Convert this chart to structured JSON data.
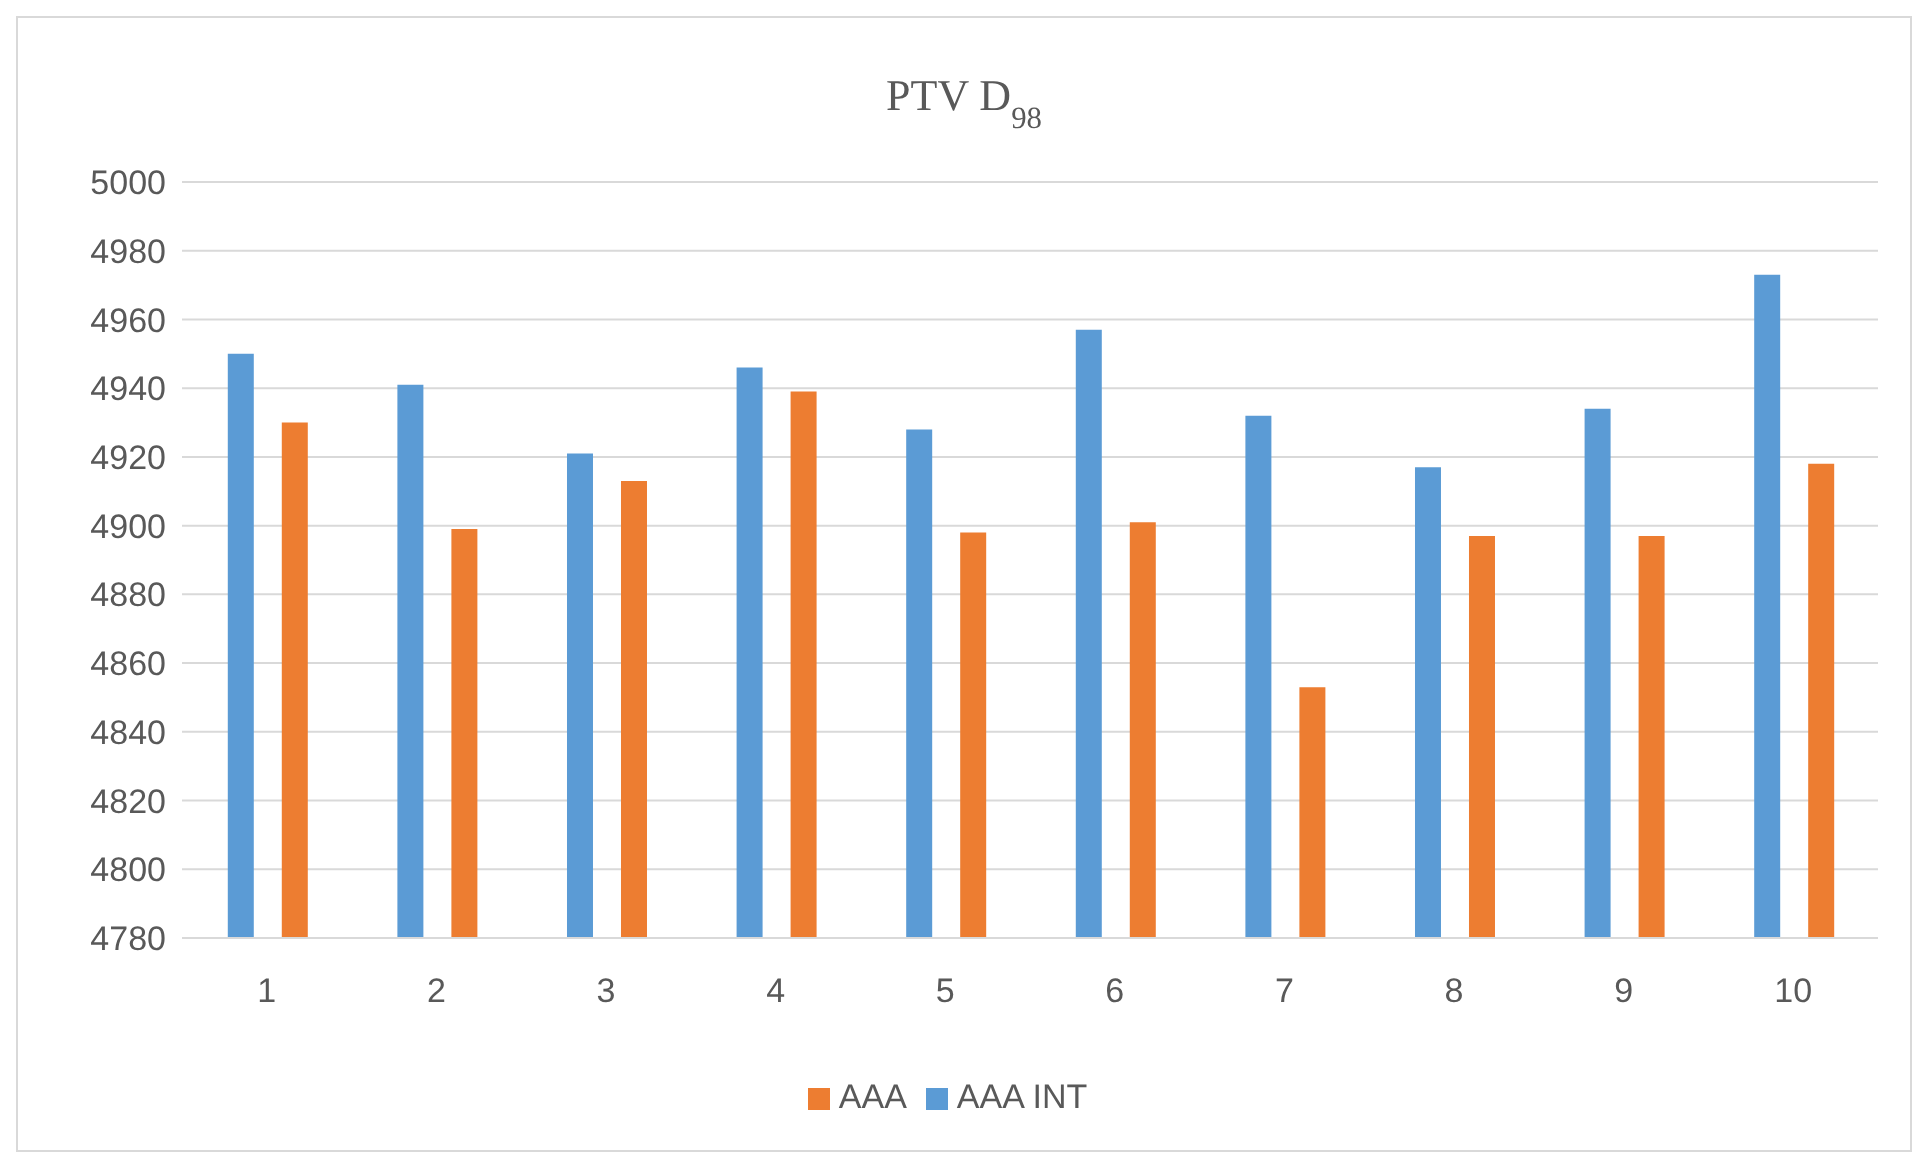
{
  "chart_data": {
    "type": "bar",
    "title": "PTV D$_{98}$",
    "categories": [
      "1",
      "2",
      "3",
      "4",
      "5",
      "6",
      "7",
      "8",
      "9",
      "10"
    ],
    "series": [
      {
        "name": "AAA INT",
        "color": "#5b9bd5",
        "values": [
          4950,
          4941,
          4921,
          4946,
          4928,
          4957,
          4932,
          4917,
          4934,
          4973
        ]
      },
      {
        "name": "AAA",
        "color": "#ed7d31",
        "values": [
          4930,
          4899,
          4913,
          4939,
          4898,
          4901,
          4853,
          4897,
          4897,
          4918
        ]
      }
    ],
    "ylim": [
      4780,
      5000
    ],
    "yticks": [
      4780,
      4800,
      4820,
      4840,
      4860,
      4880,
      4900,
      4920,
      4940,
      4960,
      4980,
      5000
    ],
    "grid": "y",
    "legend": "bottom"
  }
}
